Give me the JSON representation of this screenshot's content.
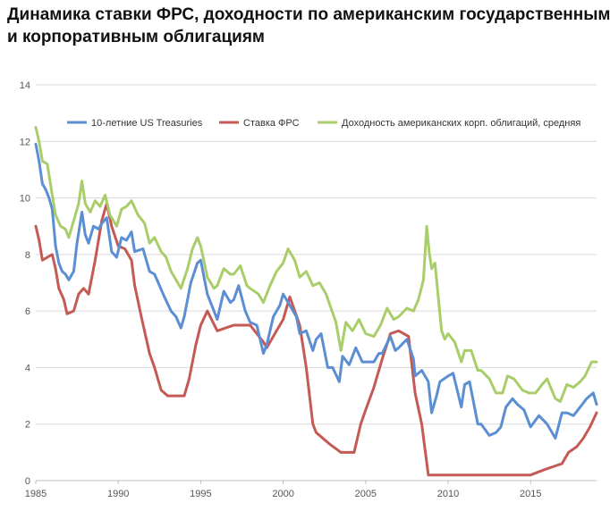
{
  "title_line1": "Динамика ставки ФРС, доходности по американским государственным",
  "title_line2": "и корпоративным облигациям",
  "chart_data": {
    "type": "line",
    "xlim": [
      1985,
      2019
    ],
    "ylim": [
      0,
      14
    ],
    "x_ticks": [
      1985,
      1990,
      1995,
      2000,
      2005,
      2010,
      2015
    ],
    "x_tick_labels": [
      "1985",
      "1990",
      "1995",
      "2000",
      "2005",
      "2010",
      "2015"
    ],
    "y_ticks": [
      0,
      2,
      4,
      6,
      8,
      10,
      12,
      14
    ],
    "y_tick_labels": [
      "0",
      "2",
      "4",
      "6",
      "8",
      "10",
      "12",
      "14"
    ],
    "grid": "horizontal",
    "legend_position": "top",
    "series": [
      {
        "name": "10-летние US Treasuries",
        "color": "#5b8ed3",
        "points": [
          [
            1985.0,
            11.9
          ],
          [
            1985.2,
            11.3
          ],
          [
            1985.4,
            10.5
          ],
          [
            1985.6,
            10.3
          ],
          [
            1985.8,
            10.0
          ],
          [
            1986.0,
            9.6
          ],
          [
            1986.2,
            8.3
          ],
          [
            1986.4,
            7.7
          ],
          [
            1986.6,
            7.4
          ],
          [
            1986.8,
            7.3
          ],
          [
            1987.0,
            7.1
          ],
          [
            1987.3,
            7.4
          ],
          [
            1987.5,
            8.4
          ],
          [
            1987.8,
            9.5
          ],
          [
            1988.0,
            8.7
          ],
          [
            1988.2,
            8.4
          ],
          [
            1988.5,
            9.0
          ],
          [
            1988.8,
            8.9
          ],
          [
            1989.0,
            9.1
          ],
          [
            1989.3,
            9.3
          ],
          [
            1989.6,
            8.1
          ],
          [
            1989.9,
            7.9
          ],
          [
            1990.2,
            8.6
          ],
          [
            1990.5,
            8.5
          ],
          [
            1990.8,
            8.8
          ],
          [
            1991.0,
            8.1
          ],
          [
            1991.5,
            8.2
          ],
          [
            1991.9,
            7.4
          ],
          [
            1992.2,
            7.3
          ],
          [
            1992.5,
            6.9
          ],
          [
            1992.8,
            6.5
          ],
          [
            1993.2,
            6.0
          ],
          [
            1993.5,
            5.8
          ],
          [
            1993.8,
            5.4
          ],
          [
            1994.0,
            5.8
          ],
          [
            1994.4,
            7.0
          ],
          [
            1994.8,
            7.7
          ],
          [
            1995.0,
            7.8
          ],
          [
            1995.4,
            6.6
          ],
          [
            1995.8,
            6.0
          ],
          [
            1996.0,
            5.7
          ],
          [
            1996.4,
            6.7
          ],
          [
            1996.8,
            6.3
          ],
          [
            1997.0,
            6.4
          ],
          [
            1997.3,
            6.9
          ],
          [
            1997.7,
            6.0
          ],
          [
            1998.0,
            5.6
          ],
          [
            1998.4,
            5.5
          ],
          [
            1998.8,
            4.5
          ],
          [
            1999.0,
            4.8
          ],
          [
            1999.4,
            5.8
          ],
          [
            1999.8,
            6.2
          ],
          [
            2000.0,
            6.6
          ],
          [
            2000.4,
            6.2
          ],
          [
            2000.8,
            5.8
          ],
          [
            2001.0,
            5.2
          ],
          [
            2001.4,
            5.3
          ],
          [
            2001.8,
            4.6
          ],
          [
            2002.0,
            5.0
          ],
          [
            2002.3,
            5.2
          ],
          [
            2002.7,
            4.0
          ],
          [
            2003.0,
            4.0
          ],
          [
            2003.4,
            3.5
          ],
          [
            2003.6,
            4.4
          ],
          [
            2004.0,
            4.1
          ],
          [
            2004.4,
            4.7
          ],
          [
            2004.8,
            4.2
          ],
          [
            2005.0,
            4.2
          ],
          [
            2005.5,
            4.2
          ],
          [
            2005.8,
            4.5
          ],
          [
            2006.0,
            4.5
          ],
          [
            2006.5,
            5.1
          ],
          [
            2006.8,
            4.6
          ],
          [
            2007.0,
            4.7
          ],
          [
            2007.5,
            5.0
          ],
          [
            2007.9,
            4.3
          ],
          [
            2008.0,
            3.7
          ],
          [
            2008.4,
            3.9
          ],
          [
            2008.8,
            3.5
          ],
          [
            2009.0,
            2.4
          ],
          [
            2009.3,
            3.0
          ],
          [
            2009.5,
            3.5
          ],
          [
            2010.0,
            3.7
          ],
          [
            2010.3,
            3.8
          ],
          [
            2010.8,
            2.6
          ],
          [
            2011.0,
            3.4
          ],
          [
            2011.3,
            3.5
          ],
          [
            2011.8,
            2.0
          ],
          [
            2012.0,
            2.0
          ],
          [
            2012.5,
            1.6
          ],
          [
            2012.9,
            1.7
          ],
          [
            2013.2,
            1.9
          ],
          [
            2013.5,
            2.6
          ],
          [
            2013.9,
            2.9
          ],
          [
            2014.2,
            2.7
          ],
          [
            2014.6,
            2.5
          ],
          [
            2015.0,
            1.9
          ],
          [
            2015.5,
            2.3
          ],
          [
            2016.0,
            2.0
          ],
          [
            2016.5,
            1.5
          ],
          [
            2016.9,
            2.4
          ],
          [
            2017.2,
            2.4
          ],
          [
            2017.6,
            2.3
          ],
          [
            2018.0,
            2.6
          ],
          [
            2018.4,
            2.9
          ],
          [
            2018.8,
            3.1
          ],
          [
            2019.0,
            2.7
          ]
        ]
      },
      {
        "name": "Ставка ФРС",
        "color": "#c55a55",
        "points": [
          [
            1985.0,
            9.0
          ],
          [
            1985.2,
            8.5
          ],
          [
            1985.4,
            7.8
          ],
          [
            1985.7,
            7.9
          ],
          [
            1986.0,
            8.0
          ],
          [
            1986.2,
            7.5
          ],
          [
            1986.4,
            6.8
          ],
          [
            1986.7,
            6.4
          ],
          [
            1986.9,
            5.9
          ],
          [
            1987.3,
            6.0
          ],
          [
            1987.6,
            6.6
          ],
          [
            1987.9,
            6.8
          ],
          [
            1988.2,
            6.6
          ],
          [
            1988.6,
            7.8
          ],
          [
            1989.0,
            9.2
          ],
          [
            1989.3,
            9.8
          ],
          [
            1989.6,
            9.0
          ],
          [
            1990.0,
            8.3
          ],
          [
            1990.4,
            8.2
          ],
          [
            1990.8,
            7.8
          ],
          [
            1991.0,
            6.9
          ],
          [
            1991.4,
            5.8
          ],
          [
            1991.9,
            4.5
          ],
          [
            1992.2,
            4.0
          ],
          [
            1992.6,
            3.2
          ],
          [
            1993.0,
            3.0
          ],
          [
            1993.5,
            3.0
          ],
          [
            1994.0,
            3.0
          ],
          [
            1994.3,
            3.6
          ],
          [
            1994.7,
            4.8
          ],
          [
            1995.0,
            5.5
          ],
          [
            1995.4,
            6.0
          ],
          [
            1996.0,
            5.3
          ],
          [
            1997.0,
            5.5
          ],
          [
            1998.0,
            5.5
          ],
          [
            1998.8,
            4.9
          ],
          [
            1999.0,
            4.7
          ],
          [
            1999.6,
            5.3
          ],
          [
            2000.0,
            5.7
          ],
          [
            2000.4,
            6.5
          ],
          [
            2001.0,
            5.5
          ],
          [
            2001.4,
            4.0
          ],
          [
            2001.8,
            2.0
          ],
          [
            2002.0,
            1.7
          ],
          [
            2002.8,
            1.3
          ],
          [
            2003.5,
            1.0
          ],
          [
            2004.3,
            1.0
          ],
          [
            2004.7,
            2.0
          ],
          [
            2005.0,
            2.5
          ],
          [
            2005.5,
            3.3
          ],
          [
            2006.0,
            4.3
          ],
          [
            2006.5,
            5.2
          ],
          [
            2007.0,
            5.3
          ],
          [
            2007.6,
            5.1
          ],
          [
            2008.0,
            3.1
          ],
          [
            2008.4,
            2.0
          ],
          [
            2008.8,
            0.2
          ],
          [
            2009.5,
            0.2
          ],
          [
            2011.0,
            0.2
          ],
          [
            2013.0,
            0.2
          ],
          [
            2015.0,
            0.2
          ],
          [
            2015.9,
            0.4
          ],
          [
            2016.9,
            0.6
          ],
          [
            2017.3,
            1.0
          ],
          [
            2017.8,
            1.2
          ],
          [
            2018.2,
            1.5
          ],
          [
            2018.6,
            1.9
          ],
          [
            2019.0,
            2.4
          ]
        ]
      },
      {
        "name": "Доходность американских корп. облигаций, средняя",
        "color": "#a9cd6a",
        "points": [
          [
            1985.0,
            12.5
          ],
          [
            1985.2,
            12.0
          ],
          [
            1985.4,
            11.3
          ],
          [
            1985.7,
            11.2
          ],
          [
            1986.0,
            10.1
          ],
          [
            1986.2,
            9.4
          ],
          [
            1986.5,
            9.0
          ],
          [
            1986.8,
            8.9
          ],
          [
            1987.0,
            8.6
          ],
          [
            1987.3,
            9.2
          ],
          [
            1987.6,
            9.8
          ],
          [
            1987.8,
            10.6
          ],
          [
            1988.0,
            9.8
          ],
          [
            1988.3,
            9.5
          ],
          [
            1988.6,
            9.9
          ],
          [
            1988.9,
            9.7
          ],
          [
            1989.2,
            10.1
          ],
          [
            1989.5,
            9.4
          ],
          [
            1989.9,
            9.0
          ],
          [
            1990.2,
            9.6
          ],
          [
            1990.5,
            9.7
          ],
          [
            1990.8,
            9.9
          ],
          [
            1991.2,
            9.4
          ],
          [
            1991.6,
            9.1
          ],
          [
            1991.9,
            8.4
          ],
          [
            1992.2,
            8.6
          ],
          [
            1992.6,
            8.1
          ],
          [
            1992.9,
            7.9
          ],
          [
            1993.2,
            7.4
          ],
          [
            1993.5,
            7.1
          ],
          [
            1993.8,
            6.8
          ],
          [
            1994.2,
            7.5
          ],
          [
            1994.5,
            8.2
          ],
          [
            1994.8,
            8.6
          ],
          [
            1995.0,
            8.3
          ],
          [
            1995.4,
            7.2
          ],
          [
            1995.8,
            6.8
          ],
          [
            1996.0,
            6.9
          ],
          [
            1996.4,
            7.5
          ],
          [
            1996.8,
            7.3
          ],
          [
            1997.0,
            7.3
          ],
          [
            1997.4,
            7.6
          ],
          [
            1997.8,
            6.9
          ],
          [
            1998.0,
            6.8
          ],
          [
            1998.5,
            6.6
          ],
          [
            1998.8,
            6.3
          ],
          [
            1999.2,
            6.9
          ],
          [
            1999.6,
            7.4
          ],
          [
            2000.0,
            7.7
          ],
          [
            2000.3,
            8.2
          ],
          [
            2000.7,
            7.8
          ],
          [
            2001.0,
            7.2
          ],
          [
            2001.4,
            7.4
          ],
          [
            2001.8,
            6.9
          ],
          [
            2002.2,
            7.0
          ],
          [
            2002.6,
            6.6
          ],
          [
            2002.9,
            6.1
          ],
          [
            2003.2,
            5.6
          ],
          [
            2003.5,
            4.6
          ],
          [
            2003.8,
            5.6
          ],
          [
            2004.2,
            5.3
          ],
          [
            2004.6,
            5.7
          ],
          [
            2005.0,
            5.2
          ],
          [
            2005.5,
            5.1
          ],
          [
            2005.9,
            5.5
          ],
          [
            2006.3,
            6.1
          ],
          [
            2006.7,
            5.7
          ],
          [
            2007.0,
            5.8
          ],
          [
            2007.5,
            6.1
          ],
          [
            2007.9,
            6.0
          ],
          [
            2008.2,
            6.4
          ],
          [
            2008.5,
            7.1
          ],
          [
            2008.7,
            9.0
          ],
          [
            2008.85,
            8.1
          ],
          [
            2009.0,
            7.5
          ],
          [
            2009.2,
            7.7
          ],
          [
            2009.4,
            6.5
          ],
          [
            2009.6,
            5.3
          ],
          [
            2009.8,
            5.0
          ],
          [
            2010.0,
            5.2
          ],
          [
            2010.4,
            4.9
          ],
          [
            2010.8,
            4.2
          ],
          [
            2011.0,
            4.6
          ],
          [
            2011.4,
            4.6
          ],
          [
            2011.8,
            3.9
          ],
          [
            2012.0,
            3.9
          ],
          [
            2012.5,
            3.6
          ],
          [
            2012.9,
            3.1
          ],
          [
            2013.3,
            3.1
          ],
          [
            2013.6,
            3.7
          ],
          [
            2014.0,
            3.6
          ],
          [
            2014.5,
            3.2
          ],
          [
            2014.9,
            3.1
          ],
          [
            2015.3,
            3.1
          ],
          [
            2015.7,
            3.4
          ],
          [
            2016.0,
            3.6
          ],
          [
            2016.5,
            2.9
          ],
          [
            2016.8,
            2.8
          ],
          [
            2017.2,
            3.4
          ],
          [
            2017.6,
            3.3
          ],
          [
            2018.0,
            3.5
          ],
          [
            2018.3,
            3.7
          ],
          [
            2018.7,
            4.2
          ],
          [
            2019.0,
            4.2
          ]
        ]
      }
    ]
  }
}
